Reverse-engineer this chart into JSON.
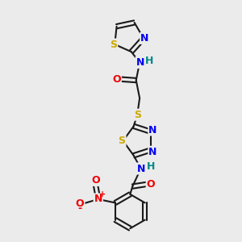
{
  "bg_color": "#ebebeb",
  "bond_color": "#1a1a1a",
  "atom_colors": {
    "N": "#0000ee",
    "O": "#ee0000",
    "S": "#ccaa00",
    "C": "#1a1a1a",
    "H": "#008888"
  }
}
